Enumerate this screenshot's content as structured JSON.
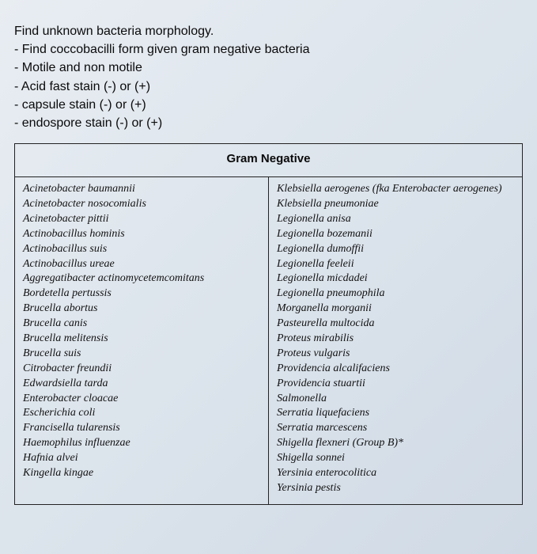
{
  "header": {
    "title": "Find unknown bacteria morphology.",
    "bullets": [
      "- Find coccobacilli form given gram negative bacteria",
      "- Motile and non motile",
      "- Acid fast stain (-) or (+)",
      "- capsule stain (-) or (+)",
      "- endospore stain  (-) or (+)"
    ]
  },
  "table": {
    "heading": "Gram Negative",
    "left_column": [
      "Acinetobacter baumannii",
      "Acinetobacter nosocomialis",
      "Acinetobacter pittii",
      "Actinobacillus hominis",
      "Actinobacillus suis",
      "Actinobacillus ureae",
      "Aggregatibacter actinomycetemcomitans",
      "Bordetella pertussis",
      "Brucella abortus",
      "Brucella canis",
      "Brucella melitensis",
      "Brucella suis",
      "Citrobacter freundii",
      "Edwardsiella tarda",
      "Enterobacter cloacae",
      "Escherichia coli",
      "Francisella tularensis",
      "Haemophilus influenzae",
      "Hafnia alvei",
      "Kingella kingae"
    ],
    "right_column": [
      "Klebsiella aerogenes (fka Enterobacter aerogenes)",
      "Klebsiella pneumoniae",
      "Legionella anisa",
      "Legionella bozemanii",
      "Legionella dumoffii",
      "Legionella feeleii",
      "Legionella micdadei",
      "Legionella pneumophila",
      "Morganella morganii",
      "Pasteurella multocida",
      "Proteus mirabilis",
      "Proteus vulgaris",
      "Providencia alcalifaciens",
      "Providencia stuartii",
      "Salmonella",
      "Serratia liquefaciens",
      "Serratia marcescens",
      "Shigella flexneri (Group B)*",
      "Shigella sonnei",
      "Yersinia enterocolitica",
      "Yersinia pestis"
    ]
  },
  "style": {
    "bg_gradient_from": "#e8edf2",
    "bg_gradient_to": "#d0dae5",
    "text_color": "#1a1a1a",
    "border_color": "#222",
    "header_font": "Arial",
    "body_font": "Georgia",
    "header_fontsize": 16,
    "table_heading_fontsize": 15,
    "entry_fontsize": 14
  }
}
